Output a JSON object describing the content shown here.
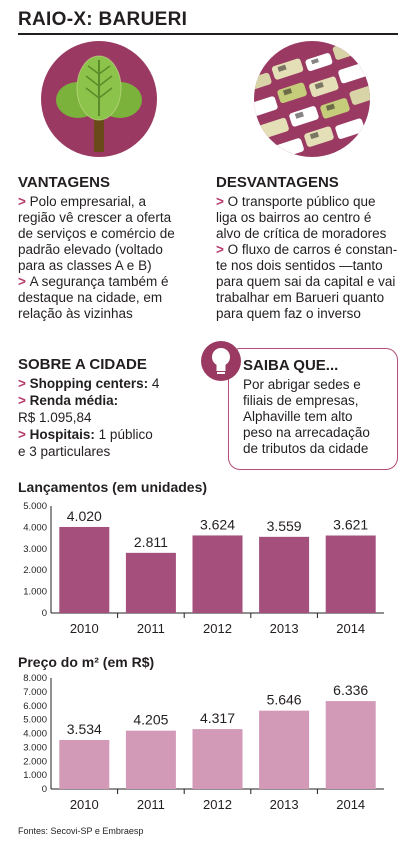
{
  "title": "RAIO-X: BARUERI",
  "colors": {
    "accent": "#b53a6b",
    "bar1": "#a44f7c",
    "bar2": "#d39ab8",
    "icon_bg": "#9a3a63"
  },
  "icons": {
    "left": "tree-icon",
    "right": "traffic-cars-icon",
    "saiba": "lightbulb-icon"
  },
  "vantagens": {
    "heading": "VANTAGENS",
    "items": [
      "Polo empresarial, a região vê crescer a oferta de serviços e comércio de padrão elevado (voltado para as classes A e B)",
      "A segurança também é destaque na cidade, em relação às vizinhas"
    ],
    "lines": [
      "> Polo empresarial, a",
      "região vê crescer a oferta",
      "de serviços e comércio de",
      "padrão elevado (voltado",
      "para as classes A e B)",
      "> A segurança também é",
      "destaque na cidade, em",
      "relação às vizinhas"
    ]
  },
  "desvantagens": {
    "heading": "DESVANTAGENS",
    "lines": [
      "> O transporte público que",
      "liga os bairros ao centro é",
      "alvo de crítica de moradores",
      "> O fluxo de carros é constan-",
      "te nos dois sentidos —tanto",
      "para quem sai da capital e vai",
      "trabalhar em Barueri quanto",
      "para quem faz o inverso"
    ]
  },
  "sobre": {
    "heading": "SOBRE A CIDADE",
    "shopping_label": "Shopping centers:",
    "shopping_value": "4",
    "renda_label": "Renda média:",
    "renda_value": "R$ 1.095,84",
    "hospitais_label": "Hospitais:",
    "hospitais_value_1": "1 público",
    "hospitais_value_2": "e 3 particulares"
  },
  "saiba": {
    "heading": "SAIBA QUE...",
    "lines": [
      "Por abrigar sedes e",
      "filiais de empresas,",
      "Alphaville tem alto",
      "peso na arrecadação",
      "de tributos da cidade"
    ]
  },
  "chart_data": [
    {
      "type": "bar",
      "title": "Lançamentos (em unidades)",
      "categories": [
        "2010",
        "2011",
        "2012",
        "2013",
        "2014"
      ],
      "values": [
        4020,
        2811,
        3624,
        3559,
        3621
      ],
      "value_labels": [
        "4.020",
        "2.811",
        "3.624",
        "3.559",
        "3.621"
      ],
      "yticks": [
        "0",
        "1.000",
        "2.000",
        "3.000",
        "4.000",
        "5.000"
      ],
      "ylim": [
        0,
        5000
      ],
      "grid": false
    },
    {
      "type": "bar",
      "title": "Preço do m² (em R$)",
      "categories": [
        "2010",
        "2011",
        "2012",
        "2013",
        "2014"
      ],
      "values": [
        3534,
        4205,
        4317,
        5646,
        6336
      ],
      "value_labels": [
        "3.534",
        "4.205",
        "4.317",
        "5.646",
        "6.336"
      ],
      "yticks": [
        "0",
        "1.000",
        "2.000",
        "3.000",
        "4.000",
        "5.000",
        "6.000",
        "7.000",
        "8.000"
      ],
      "ylim": [
        0,
        8000
      ],
      "grid": false
    }
  ],
  "source": "Fontes: Secovi-SP e Embraesp"
}
